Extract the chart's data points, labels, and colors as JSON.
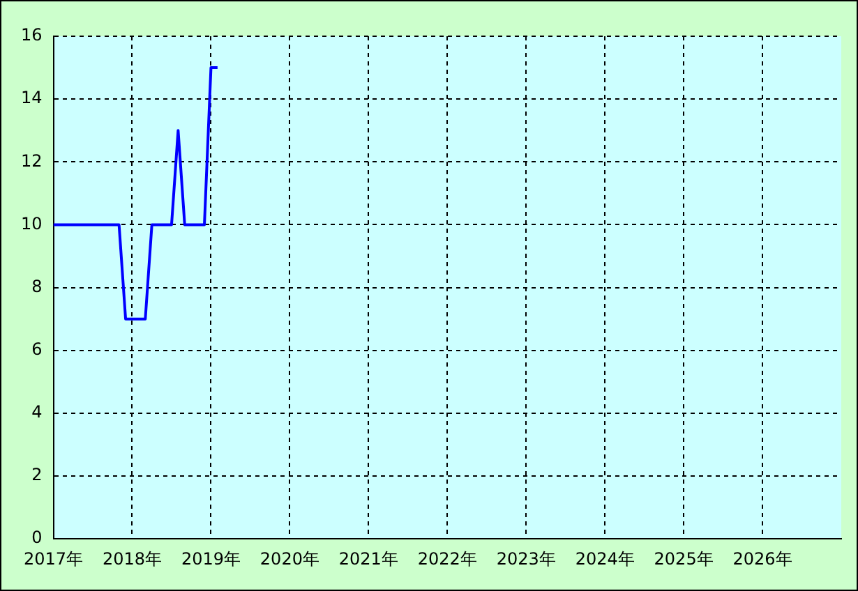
{
  "chart_data": {
    "type": "line",
    "x": [
      "2017-01",
      "2017-02",
      "2017-03",
      "2017-04",
      "2017-05",
      "2017-06",
      "2017-07",
      "2017-08",
      "2017-09",
      "2017-10",
      "2017-11",
      "2017-12",
      "2018-01",
      "2018-02",
      "2018-03",
      "2018-04",
      "2018-05",
      "2018-06",
      "2018-07",
      "2018-08",
      "2018-09",
      "2018-10",
      "2018-11",
      "2018-12",
      "2019-01",
      "2019-02"
    ],
    "series": [
      {
        "color": "#0000ff",
        "values": [
          10,
          10,
          10,
          10,
          10,
          10,
          10,
          10,
          10,
          10,
          10,
          7,
          7,
          7,
          7,
          10,
          10,
          10,
          10,
          13,
          10,
          10,
          10,
          10,
          15,
          15
        ]
      }
    ],
    "xlim": [
      "2017-01",
      "2027-01"
    ],
    "xticks": [
      {
        "value": "2017",
        "label": "2017年"
      },
      {
        "value": "2018",
        "label": "2018年"
      },
      {
        "value": "2019",
        "label": "2019年"
      },
      {
        "value": "2020",
        "label": "2020年"
      },
      {
        "value": "2021",
        "label": "2021年"
      },
      {
        "value": "2022",
        "label": "2022年"
      },
      {
        "value": "2023",
        "label": "2023年"
      },
      {
        "value": "2024",
        "label": "2024年"
      },
      {
        "value": "2025",
        "label": "2025年"
      },
      {
        "value": "2026",
        "label": "2026年"
      }
    ],
    "ylim": [
      0,
      16
    ],
    "yticks": [
      0,
      2,
      4,
      6,
      8,
      10,
      12,
      14,
      16
    ],
    "grid": true,
    "legend": false,
    "marker": "none",
    "line_style": "solid"
  }
}
